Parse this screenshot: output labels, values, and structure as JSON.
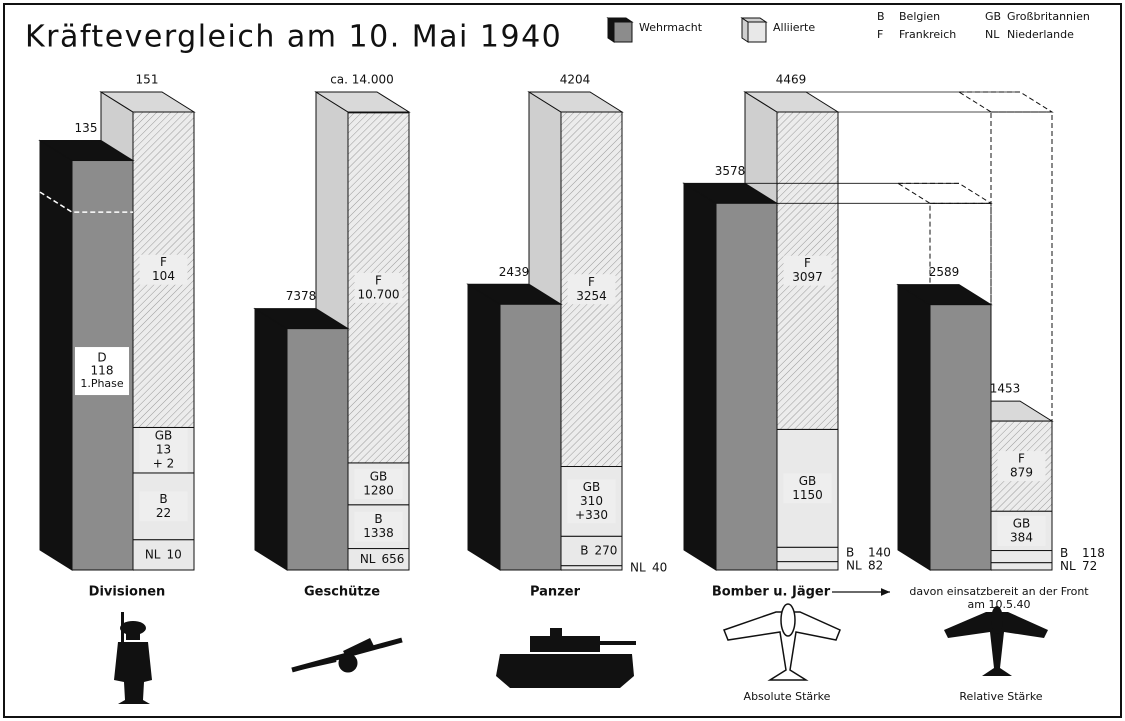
{
  "title": "Kräftevergleich am 10. Mai 1940",
  "legend": [
    {
      "name": "Wehrmacht",
      "color": "#8c8c8c",
      "side": "#111111"
    },
    {
      "name": "Alliierte",
      "color": "#e8e8e8",
      "side": "#cfcfcf"
    }
  ],
  "abbreviations": [
    {
      "code": "B",
      "name": "Belgien"
    },
    {
      "code": "F",
      "name": "Frankreich"
    },
    {
      "code": "GB",
      "name": "Großbritannien"
    },
    {
      "code": "NL",
      "name": "Niederlande"
    }
  ],
  "chart_data": [
    {
      "type": "bar3d",
      "label": [
        "Divisionen"
      ],
      "ylim": [
        0,
        151
      ],
      "wehrmacht": {
        "value": 135,
        "phase": {
          "code": "D",
          "value": 118,
          "label": "1.Phase"
        }
      },
      "alliierte": {
        "value": 151,
        "segments": [
          {
            "code": "NL",
            "values": [
              10
            ]
          },
          {
            "code": "B",
            "values": [
              22
            ]
          },
          {
            "code": "GB",
            "values": [
              13,
              2
            ],
            "value_labels": [
              "13",
              "+ 2"
            ]
          },
          {
            "code": "F",
            "values": [
              104
            ]
          }
        ]
      }
    },
    {
      "type": "bar3d",
      "label": [
        "Geschütze"
      ],
      "ylim": [
        0,
        14000
      ],
      "wehrmacht": {
        "value": 7378
      },
      "alliierte": {
        "value": 14000,
        "value_label": "ca. 14.000",
        "segments": [
          {
            "code": "NL",
            "values": [
              656
            ]
          },
          {
            "code": "B",
            "values": [
              1338
            ]
          },
          {
            "code": "GB",
            "values": [
              1280
            ]
          },
          {
            "code": "F",
            "values": [
              10700
            ],
            "value_labels": [
              "10.700"
            ]
          }
        ]
      }
    },
    {
      "type": "bar3d",
      "label": [
        "Panzer"
      ],
      "ylim": [
        0,
        4204
      ],
      "wehrmacht": {
        "value": 2439
      },
      "alliierte": {
        "value": 4204,
        "segments": [
          {
            "code": "NL",
            "values": [
              40
            ]
          },
          {
            "code": "B",
            "values": [
              270
            ]
          },
          {
            "code": "GB",
            "values": [
              310,
              330
            ],
            "value_labels": [
              "310",
              "+330"
            ]
          },
          {
            "code": "F",
            "values": [
              3254
            ]
          }
        ]
      }
    },
    {
      "type": "bar3d",
      "label": [
        "Bomber u. Jäger"
      ],
      "sublabel": "Absolute Stärke",
      "ylim": [
        0,
        4469
      ],
      "wehrmacht": {
        "value": 3578
      },
      "alliierte": {
        "value": 4469,
        "segments": [
          {
            "code": "NL",
            "values": [
              82
            ]
          },
          {
            "code": "B",
            "values": [
              140
            ]
          },
          {
            "code": "GB",
            "values": [
              1150
            ]
          },
          {
            "code": "F",
            "values": [
              3097
            ]
          }
        ]
      }
    },
    {
      "type": "bar3d-relative",
      "label": [
        "davon einsatzbereit an der Front",
        "am 10.5.40"
      ],
      "sublabel": "Relative Stärke",
      "ylim": [
        0,
        4469
      ],
      "wehrmacht": {
        "value": 2589
      },
      "alliierte": {
        "value": 1453,
        "segments": [
          {
            "code": "NL",
            "values": [
              72
            ]
          },
          {
            "code": "B",
            "values": [
              118
            ]
          },
          {
            "code": "GB",
            "values": [
              384
            ]
          },
          {
            "code": "F",
            "values": [
              879
            ]
          }
        ]
      }
    }
  ]
}
